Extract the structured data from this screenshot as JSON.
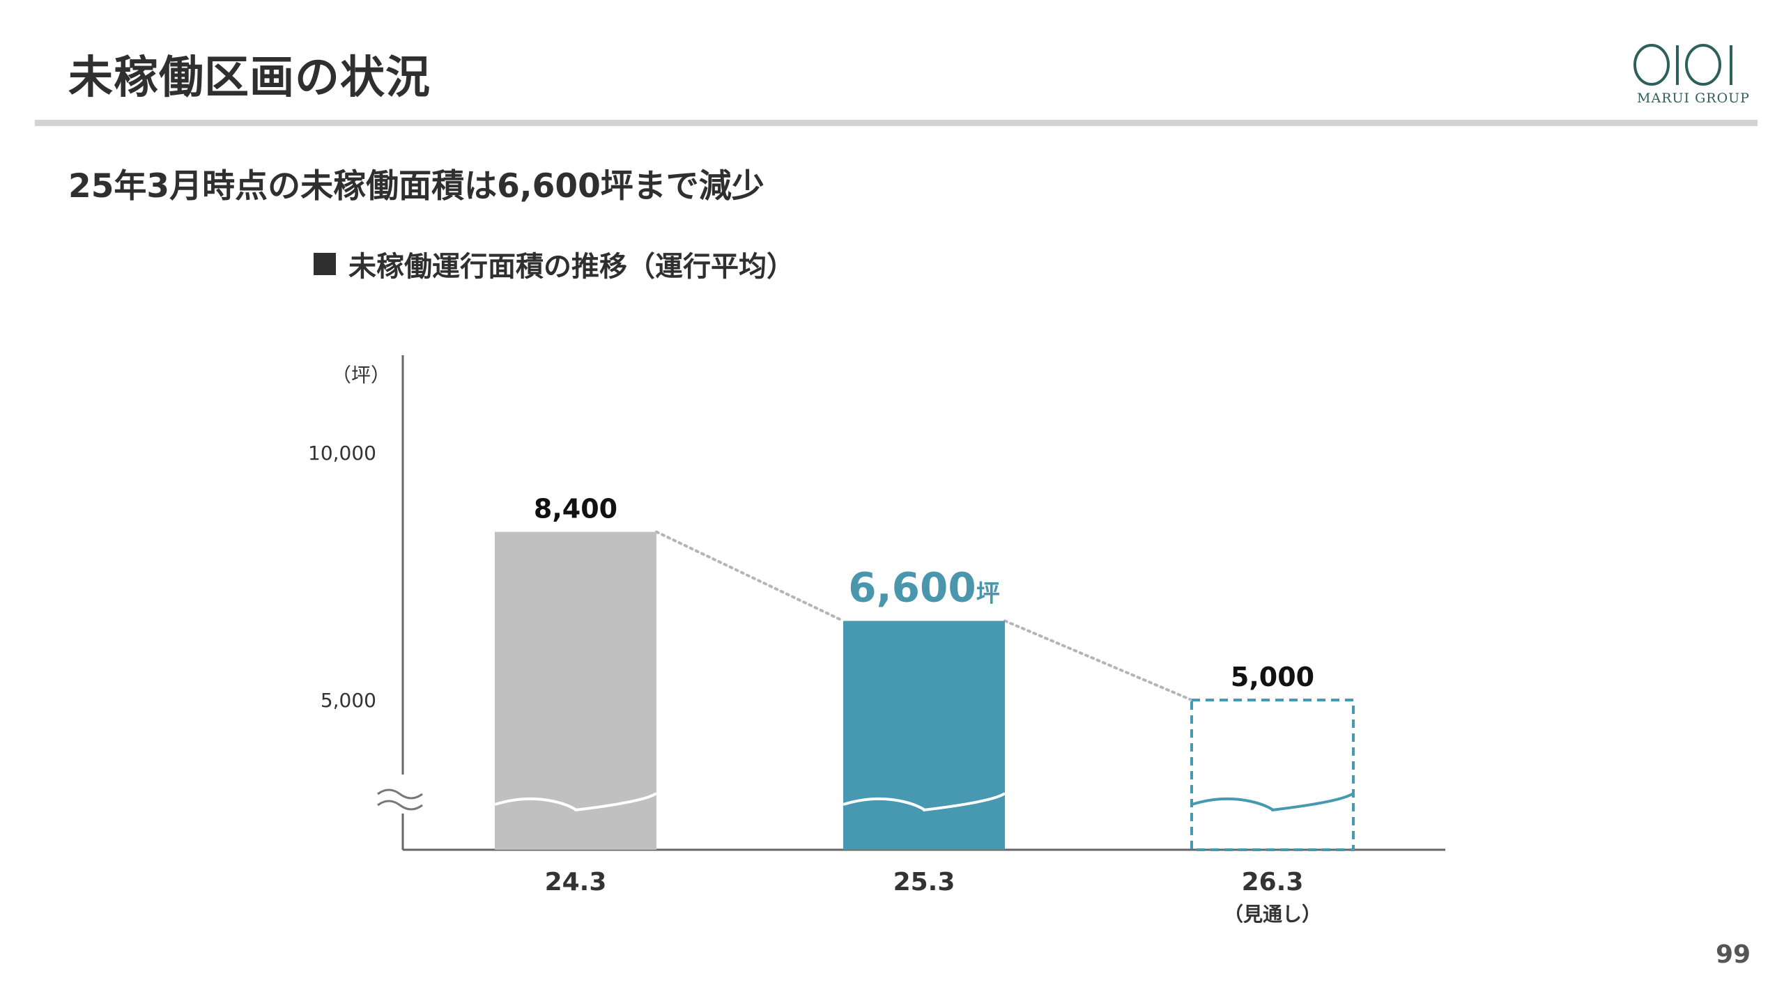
{
  "header": {
    "title": "未稼働区画の状況",
    "logo_text": "MARUI GROUP"
  },
  "subtitle": "25年3月時点の未稼働面積は6,600坪まで減少",
  "chart_title": "未稼働運行面積の推移（運行平均）",
  "page_number": "99",
  "colors": {
    "bar_gray": "#c0c0c0",
    "bar_teal": "#4699b0",
    "highlight_text": "#4a96ac",
    "axis": "#666666"
  },
  "chart_data": {
    "type": "bar",
    "unit": "（坪）",
    "categories": [
      "24.3",
      "25.3",
      "26.3"
    ],
    "category_notes": [
      "",
      "",
      "（見通し）"
    ],
    "values": [
      8400,
      6600,
      5000
    ],
    "value_labels": [
      "8,400",
      "6,600",
      "5,000"
    ],
    "value_label_suffixes": [
      "",
      "坪",
      ""
    ],
    "bar_styles": [
      "gray",
      "teal",
      "dashed-outline"
    ],
    "highlight_index": 1,
    "y_ticks": [
      5000,
      10000
    ],
    "y_tick_labels": [
      "5,000",
      "10,000"
    ],
    "axis_break": true,
    "legend": "none",
    "grid": false
  }
}
